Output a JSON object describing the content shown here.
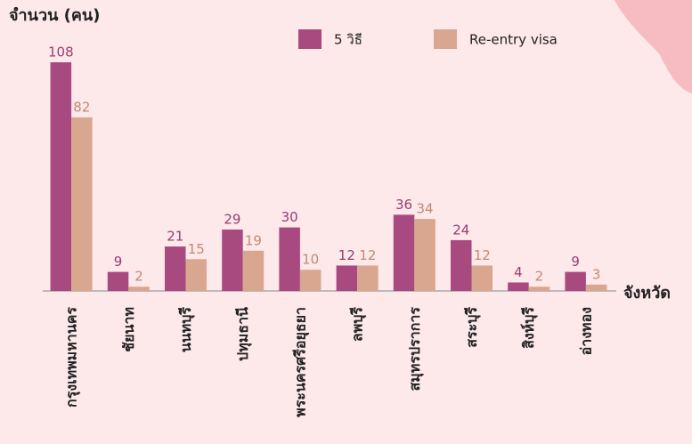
{
  "chart_data": {
    "type": "bar",
    "y_label": "จำนวน (คน)",
    "x_label": "จังหวัด",
    "categories": [
      "กรุงเทพมหานคร",
      "ชัยนาท",
      "นนทบุรี",
      "ปทุมธานี",
      "พระนครศรีอยุธยา",
      "ลพบุรี",
      "สมุทรปราการ",
      "สระบุรี",
      "สิงห์บุรี",
      "อ่างทอง"
    ],
    "series": [
      {
        "name": "5 วิธี",
        "color": "#a84a80",
        "values": [
          108,
          9,
          21,
          29,
          30,
          12,
          36,
          24,
          4,
          9
        ]
      },
      {
        "name": "Re-entry visa",
        "color": "#d9a68f",
        "values": [
          82,
          2,
          15,
          19,
          10,
          12,
          34,
          12,
          2,
          3
        ]
      }
    ],
    "legend": "top"
  }
}
